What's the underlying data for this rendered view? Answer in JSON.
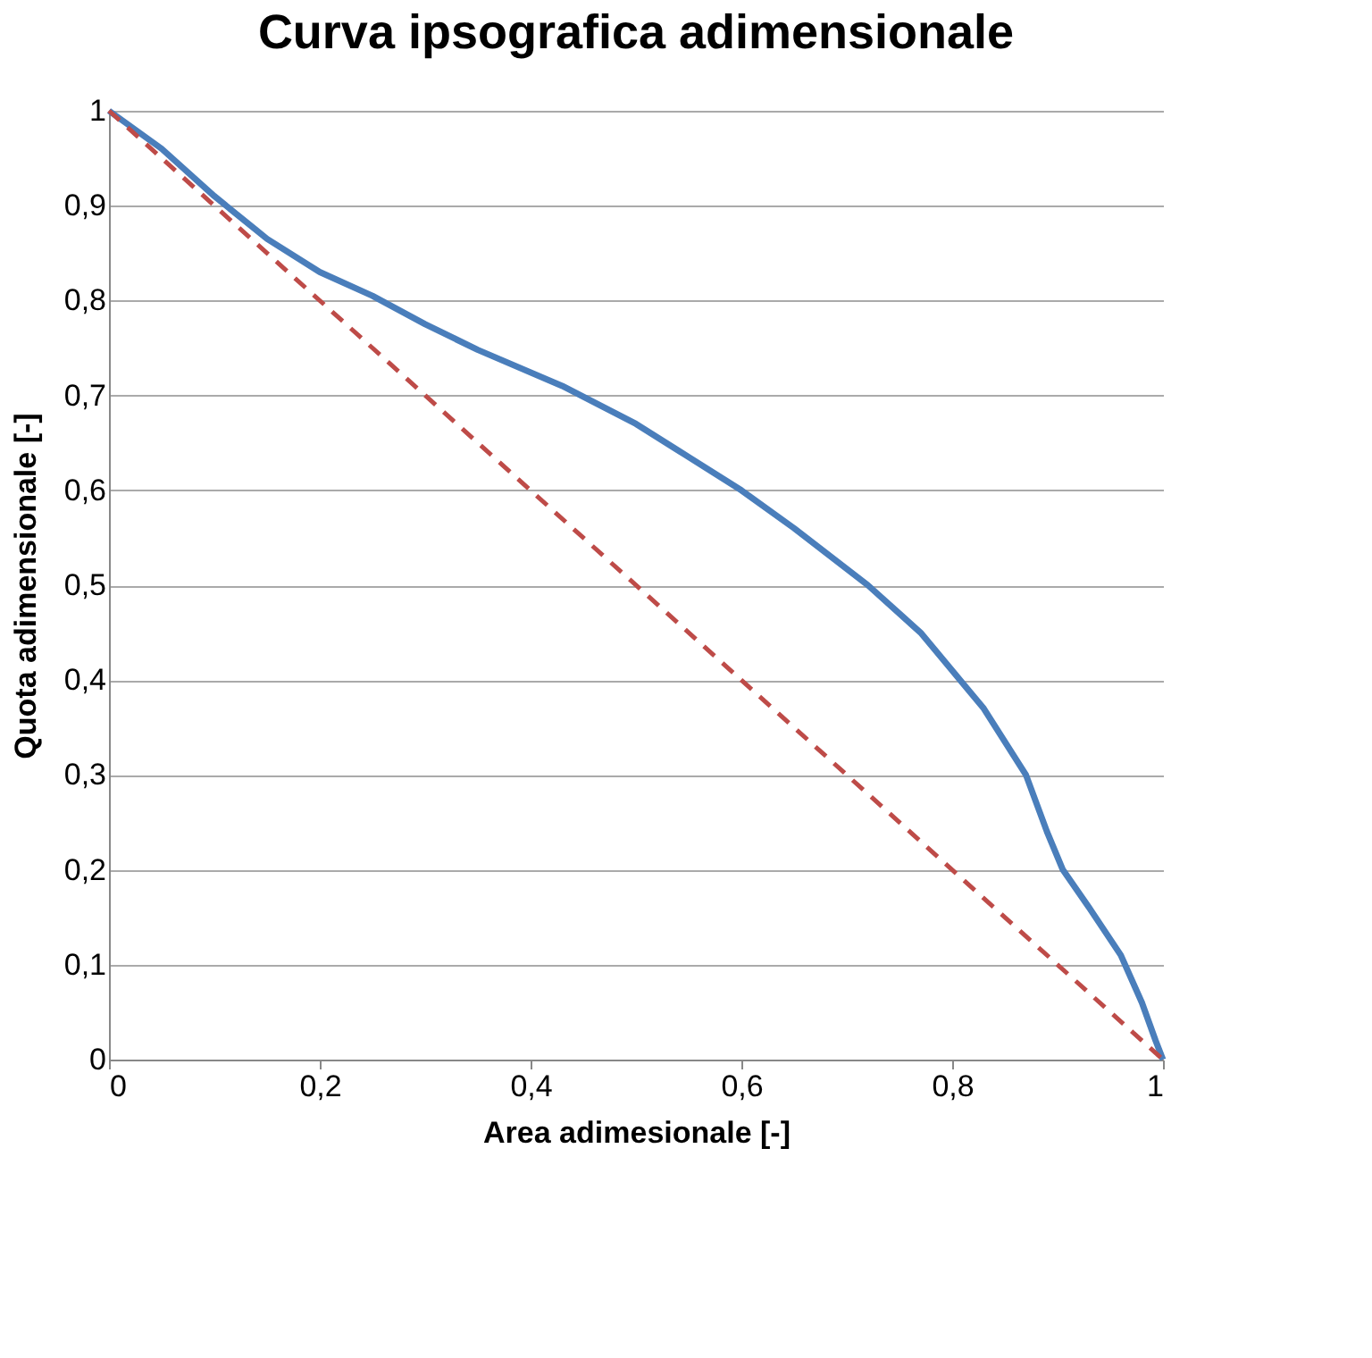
{
  "chart_data": {
    "type": "line",
    "title": "Curva ipsografica adimensionale",
    "xlabel": "Area adimesionale [-]",
    "ylabel": "Quota adimensionale [-]",
    "xlim": [
      0,
      1
    ],
    "ylim": [
      0,
      1
    ],
    "xticks": [
      0,
      {
        "value": 0.2,
        "label": "0,2"
      },
      {
        "value": 0.4,
        "label": "0,4"
      },
      {
        "value": 0.6,
        "label": "0,6"
      },
      {
        "value": 0.8,
        "label": "0,8"
      },
      1
    ],
    "yticks": [
      0,
      {
        "value": 0.1,
        "label": "0,1"
      },
      {
        "value": 0.2,
        "label": "0,2"
      },
      {
        "value": 0.3,
        "label": "0,3"
      },
      {
        "value": 0.4,
        "label": "0,4"
      },
      {
        "value": 0.5,
        "label": "0,5"
      },
      {
        "value": 0.6,
        "label": "0,6"
      },
      {
        "value": 0.7,
        "label": "0,7"
      },
      {
        "value": 0.8,
        "label": "0,8"
      },
      {
        "value": 0.9,
        "label": "0,9"
      },
      1
    ],
    "grid": "y",
    "marker": "none",
    "series": [
      {
        "color": "#4a7ebb",
        "line_style": "solid",
        "x": [
          0,
          0.05,
          0.1,
          0.15,
          0.2,
          0.25,
          0.3,
          0.35,
          0.43,
          0.5,
          0.6,
          0.65,
          0.72,
          0.77,
          0.8,
          0.83,
          0.87,
          0.89,
          0.905,
          0.93,
          0.96,
          0.98,
          0.993,
          1
        ],
        "values": [
          1,
          0.96,
          0.91,
          0.865,
          0.83,
          0.805,
          0.775,
          0.748,
          0.71,
          0.67,
          0.6,
          0.56,
          0.5,
          0.45,
          0.41,
          0.37,
          0.3,
          0.24,
          0.2,
          0.16,
          0.11,
          0.06,
          0.02,
          0
        ]
      },
      {
        "color": "#be4b48",
        "line_style": "dashed",
        "x": [
          0,
          1
        ],
        "values": [
          1,
          0
        ]
      }
    ]
  }
}
